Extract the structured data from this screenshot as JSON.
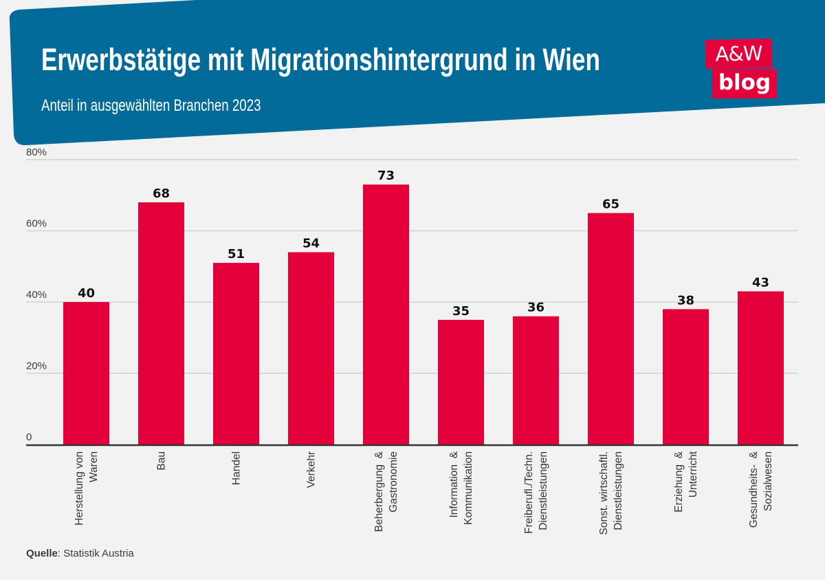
{
  "header": {
    "title": "Erwerbstätige mit Migrationshintergrund in Wien",
    "subtitle": "Anteil in ausgewählten Branchen 2023",
    "banner_color": "#036b99"
  },
  "logo": {
    "line1": "A&W",
    "line2": "blog",
    "color": "#e4003a"
  },
  "source": {
    "label": "Quelle",
    "separator": ": ",
    "text": "Statistik Austria"
  },
  "chart_data": {
    "type": "bar",
    "title": "Erwerbstätige mit Migrationshintergrund in Wien",
    "subtitle": "Anteil in ausgewählten Branchen 2023",
    "xlabel": "",
    "ylabel": "",
    "ylim": [
      0,
      80
    ],
    "yticks": [
      0,
      20,
      40,
      60,
      80
    ],
    "ytick_labels": [
      "0",
      "20%",
      "40%",
      "60%",
      "80%"
    ],
    "grid": true,
    "legend": "none",
    "bar_color": "#e4003a",
    "categories": [
      [
        "Herstellung von",
        "Waren"
      ],
      [
        "Bau"
      ],
      [
        "Handel"
      ],
      [
        "Verkehr"
      ],
      [
        "Beherbergung  &",
        "Gastronomie"
      ],
      [
        "Information  &",
        "Kommunikation"
      ],
      [
        "Freiberufl./Techn.",
        "Dienstleistungen"
      ],
      [
        "Sonst. wirtschaftl.",
        "Dienstleistungen"
      ],
      [
        "Erziehung  &",
        "Unterricht"
      ],
      [
        "Gesundheits-  &",
        "Sozialwesen"
      ]
    ],
    "values": [
      40,
      68,
      51,
      54,
      73,
      35,
      36,
      65,
      38,
      43
    ],
    "data_labels": [
      "40",
      "68",
      "51",
      "54",
      "73",
      "35",
      "36",
      "65",
      "38",
      "43"
    ]
  }
}
